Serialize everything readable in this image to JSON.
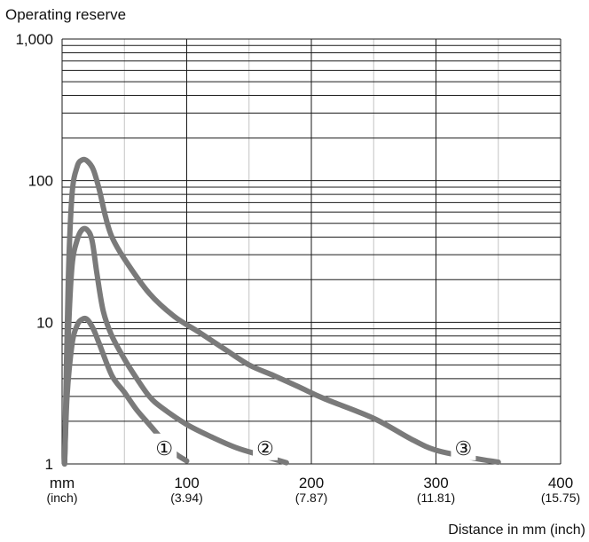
{
  "chart_data": {
    "type": "line",
    "title": "",
    "ylabel": "Operating reserve",
    "xlabel": "Distance in mm (inch)",
    "x_axis": {
      "range": [
        0,
        400
      ],
      "ticks": [
        {
          "value": 0,
          "label": "mm",
          "sublabel": "(inch)"
        },
        {
          "value": 100,
          "label": "100",
          "sublabel": "(3.94)"
        },
        {
          "value": 200,
          "label": "200",
          "sublabel": "(7.87)"
        },
        {
          "value": 300,
          "label": "300",
          "sublabel": "(11.81)"
        },
        {
          "value": 400,
          "label": "400",
          "sublabel": "(15.75)"
        }
      ]
    },
    "y_axis": {
      "scale": "log",
      "range": [
        1,
        1000
      ],
      "ticks": [
        {
          "value": 1,
          "label": "1"
        },
        {
          "value": 10,
          "label": "10"
        },
        {
          "value": 100,
          "label": "100"
        },
        {
          "value": 1000,
          "label": "1,000"
        }
      ]
    },
    "grid": true,
    "colors": {
      "curve": "#7a7a7a",
      "grid_major": "#1a1a1a",
      "grid_minor_vertical": "#c4c4c4"
    },
    "series": [
      {
        "label": "①",
        "points": [
          [
            2,
            1
          ],
          [
            4,
            3
          ],
          [
            8,
            7
          ],
          [
            12,
            9.5
          ],
          [
            16,
            10.5
          ],
          [
            20,
            10.5
          ],
          [
            25,
            9
          ],
          [
            30,
            7
          ],
          [
            40,
            4.2
          ],
          [
            50,
            3.2
          ],
          [
            60,
            2.4
          ],
          [
            70,
            1.9
          ],
          [
            80,
            1.5
          ],
          [
            90,
            1.2
          ],
          [
            100,
            1.05
          ]
        ]
      },
      {
        "label": "②",
        "points": [
          [
            2,
            1
          ],
          [
            5,
            8
          ],
          [
            8,
            25
          ],
          [
            12,
            38
          ],
          [
            16,
            45
          ],
          [
            20,
            45
          ],
          [
            24,
            38
          ],
          [
            28,
            22
          ],
          [
            33,
            12
          ],
          [
            40,
            8
          ],
          [
            50,
            5.5
          ],
          [
            60,
            4
          ],
          [
            70,
            3
          ],
          [
            80,
            2.5
          ],
          [
            100,
            1.9
          ],
          [
            120,
            1.55
          ],
          [
            140,
            1.3
          ],
          [
            160,
            1.15
          ],
          [
            180,
            1.02
          ]
        ]
      },
      {
        "label": "③",
        "points": [
          [
            2,
            1
          ],
          [
            5,
            20
          ],
          [
            8,
            80
          ],
          [
            12,
            125
          ],
          [
            16,
            140
          ],
          [
            20,
            138
          ],
          [
            25,
            120
          ],
          [
            30,
            85
          ],
          [
            35,
            55
          ],
          [
            40,
            40
          ],
          [
            50,
            28
          ],
          [
            70,
            16
          ],
          [
            90,
            11
          ],
          [
            110,
            8.5
          ],
          [
            130,
            6.5
          ],
          [
            150,
            5
          ],
          [
            170,
            4.2
          ],
          [
            190,
            3.5
          ],
          [
            210,
            2.9
          ],
          [
            250,
            2.1
          ],
          [
            280,
            1.5
          ],
          [
            300,
            1.25
          ],
          [
            330,
            1.1
          ],
          [
            350,
            1.03
          ]
        ]
      }
    ],
    "curve_labels": [
      {
        "text": "①",
        "x": 82,
        "y": 1.3
      },
      {
        "text": "②",
        "x": 163,
        "y": 1.3
      },
      {
        "text": "③",
        "x": 322,
        "y": 1.3
      }
    ]
  }
}
